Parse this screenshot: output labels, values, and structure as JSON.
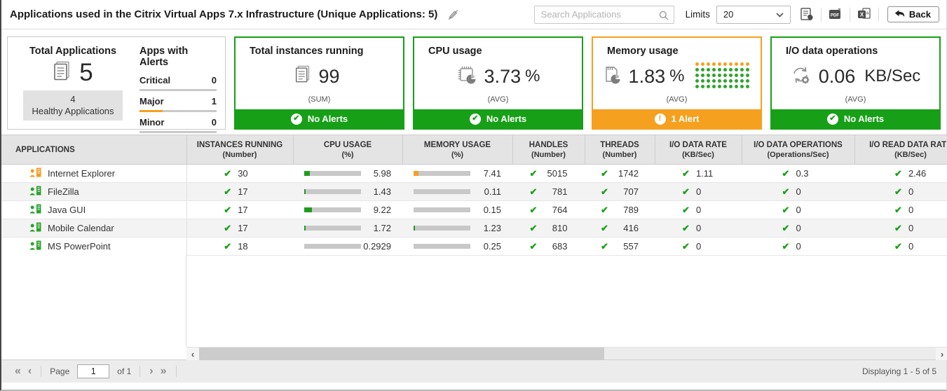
{
  "header": {
    "title": "Applications used in the Citrix Virtual Apps 7.x Infrastructure (Unique Applications: 5)",
    "search": {
      "placeholder": "Search Applications"
    },
    "limits": {
      "label": "Limits",
      "value": "20"
    },
    "export_icons": [
      "report-export-icon",
      "pdf-export-icon",
      "excel-export-icon"
    ],
    "back_label": "Back"
  },
  "summary": {
    "total_applications": {
      "title": "Total Applications",
      "count": "5",
      "healthy_count": "4",
      "healthy_label": "Healthy Applications"
    },
    "apps_with_alerts": {
      "title": "Apps with Alerts",
      "items": [
        {
          "label": "Critical",
          "value": "0",
          "fill_pct": 0
        },
        {
          "label": "Major",
          "value": "1",
          "fill_pct": 30
        },
        {
          "label": "Minor",
          "value": "0",
          "fill_pct": 0
        }
      ]
    }
  },
  "metric_cards": [
    {
      "title": "Total instances running",
      "value": "99",
      "unit": "",
      "aggregation": "(SUM)",
      "status": "No Alerts",
      "state": "ok",
      "icon": "instances-document-icon"
    },
    {
      "title": "CPU usage",
      "value": "3.73",
      "unit": "%",
      "aggregation": "(AVG)",
      "status": "No Alerts",
      "state": "ok",
      "icon": "cpu-icon"
    },
    {
      "title": "Memory usage",
      "value": "1.83",
      "unit": "%",
      "aggregation": "(AVG)",
      "status": "1 Alert",
      "state": "alert",
      "icon": "memory-icon",
      "dot_grid": {
        "columns": 10,
        "rows": 5,
        "alert_dots": 10,
        "ok_dots": 40
      }
    },
    {
      "title": "I/O data operations",
      "value": "0.06",
      "unit": "KB/Sec",
      "aggregation": "(AVG)",
      "status": "No Alerts",
      "state": "ok",
      "icon": "io-operations-icon"
    }
  ],
  "table": {
    "columns": [
      {
        "label": "APPLICATIONS",
        "unit": ""
      },
      {
        "label": "INSTANCES RUNNING",
        "unit": "(Number)"
      },
      {
        "label": "CPU USAGE",
        "unit": "(%)"
      },
      {
        "label": "MEMORY USAGE",
        "unit": "(%)"
      },
      {
        "label": "HANDLES",
        "unit": "(Number)"
      },
      {
        "label": "THREADS",
        "unit": "(Number)"
      },
      {
        "label": "I/O DATA RATE",
        "unit": "(KB/Sec)"
      },
      {
        "label": "I/O DATA OPERATIONS",
        "unit": "(Operations/Sec)"
      },
      {
        "label": "I/O READ DATA RATE",
        "unit": "(KB/Sec)"
      }
    ],
    "rows": [
      {
        "app": "Internet Explorer",
        "status": "alert",
        "instances": "30",
        "cpu": {
          "value": "5.98",
          "fill_pct": 10,
          "color": "green"
        },
        "memory": {
          "value": "7.41",
          "fill_pct": 9,
          "color": "orange"
        },
        "handles": "5015",
        "threads": "1742",
        "io_data_rate": "1.11",
        "io_data_operations": "0.3",
        "io_read_data_rate": "2.46"
      },
      {
        "app": "FileZilla",
        "status": "ok",
        "instances": "17",
        "cpu": {
          "value": "1.43",
          "fill_pct": 2,
          "color": "green"
        },
        "memory": {
          "value": "0.11",
          "fill_pct": 0,
          "color": "green"
        },
        "handles": "781",
        "threads": "707",
        "io_data_rate": "0",
        "io_data_operations": "0",
        "io_read_data_rate": "0"
      },
      {
        "app": "Java GUI",
        "status": "ok",
        "instances": "17",
        "cpu": {
          "value": "9.22",
          "fill_pct": 13,
          "color": "green"
        },
        "memory": {
          "value": "0.15",
          "fill_pct": 0,
          "color": "green"
        },
        "handles": "764",
        "threads": "789",
        "io_data_rate": "0",
        "io_data_operations": "0",
        "io_read_data_rate": "0"
      },
      {
        "app": "Mobile Calendar",
        "status": "ok",
        "instances": "17",
        "cpu": {
          "value": "1.72",
          "fill_pct": 3,
          "color": "green"
        },
        "memory": {
          "value": "1.23",
          "fill_pct": 2,
          "color": "green"
        },
        "handles": "810",
        "threads": "416",
        "io_data_rate": "0",
        "io_data_operations": "0",
        "io_read_data_rate": "0"
      },
      {
        "app": "MS PowerPoint",
        "status": "ok",
        "instances": "18",
        "cpu": {
          "value": "0.2929",
          "fill_pct": 0,
          "color": "green"
        },
        "memory": {
          "value": "0.25",
          "fill_pct": 0,
          "color": "green"
        },
        "handles": "683",
        "threads": "557",
        "io_data_rate": "0",
        "io_data_operations": "0",
        "io_read_data_rate": "0"
      }
    ]
  },
  "pagination": {
    "page_label": "Page",
    "page_value": "1",
    "of_label": "of 1",
    "displaying_text": "Displaying 1 - 5 of 5"
  },
  "colors": {
    "ok_green": "#17a017",
    "alert_orange": "#f5a01e",
    "check_green": "#1ca11c"
  }
}
